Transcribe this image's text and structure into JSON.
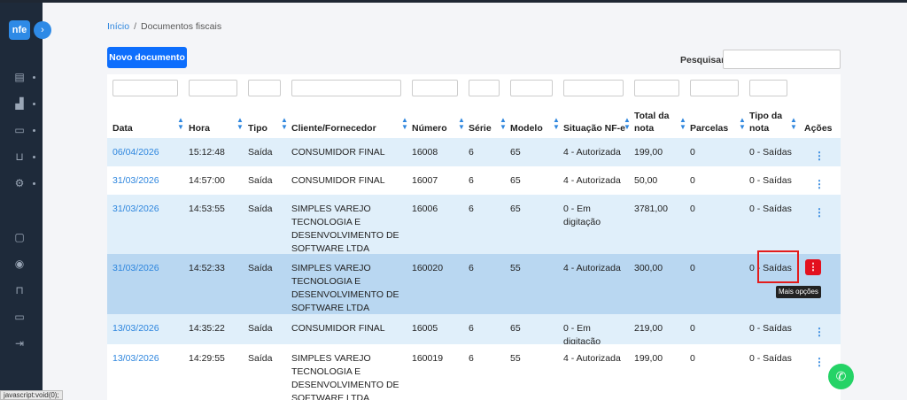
{
  "sidebar": {
    "logo": "nfe",
    "toggle": "›",
    "icons": [
      "list-icon",
      "bar-chart-icon",
      "folder-icon",
      "cart-icon",
      "gear-icon",
      "message-icon",
      "microphone-icon",
      "lock-icon",
      "laptop-icon",
      "logout-icon"
    ]
  },
  "status_bar": "javascript:void(0);",
  "breadcrumb": {
    "home": "Início",
    "separator": "/",
    "current": "Documentos fiscais"
  },
  "toolbar": {
    "new_document": "Novo documento",
    "search_label": "Pesquisar",
    "search_value": ""
  },
  "table": {
    "columns": {
      "data": "Data",
      "hora": "Hora",
      "tipo": "Tipo",
      "cliente": "Cliente/Fornecedor",
      "numero": "Número",
      "serie": "Série",
      "modelo": "Modelo",
      "situacao": "Situação NF-e",
      "total_1": "Total da",
      "total_2": "nota",
      "parcelas": "Parcelas",
      "tipo_nota_1": "Tipo da",
      "tipo_nota_2": "nota",
      "acoes": "Ações"
    },
    "rows": [
      {
        "data": "06/04/2026",
        "hora": "15:12:48",
        "tipo": "Saída",
        "cliente": "CONSUMIDOR FINAL",
        "numero": "16008",
        "serie": "6",
        "modelo": "65",
        "situacao": "4 - Autorizada",
        "total": "199,00",
        "parcelas": "0",
        "tipo_nota": "0 - Saídas"
      },
      {
        "data": "31/03/2026",
        "hora": "14:57:00",
        "tipo": "Saída",
        "cliente": "CONSUMIDOR FINAL",
        "numero": "16007",
        "serie": "6",
        "modelo": "65",
        "situacao": "4 - Autorizada",
        "total": "50,00",
        "parcelas": "0",
        "tipo_nota": "0 - Saídas"
      },
      {
        "data": "31/03/2026",
        "hora": "14:53:55",
        "tipo": "Saída",
        "cliente": "SIMPLES VAREJO TECNOLOGIA E DESENVOLVIMENTO DE SOFTWARE LTDA",
        "numero": "16006",
        "serie": "6",
        "modelo": "65",
        "situacao": "0 - Em digitação",
        "total": "3781,00",
        "parcelas": "0",
        "tipo_nota": "0 - Saídas"
      },
      {
        "data": "31/03/2026",
        "hora": "14:52:33",
        "tipo": "Saída",
        "cliente": "SIMPLES VAREJO TECNOLOGIA E DESENVOLVIMENTO DE SOFTWARE LTDA",
        "numero": "160020",
        "serie": "6",
        "modelo": "55",
        "situacao": "4 - Autorizada",
        "total": "300,00",
        "parcelas": "0",
        "tipo_nota": "0 - Saídas"
      },
      {
        "data": "13/03/2026",
        "hora": "14:35:22",
        "tipo": "Saída",
        "cliente": "CONSUMIDOR FINAL",
        "numero": "16005",
        "serie": "6",
        "modelo": "65",
        "situacao": "0 - Em digitação",
        "total": "219,00",
        "parcelas": "0",
        "tipo_nota": "0 - Saídas"
      },
      {
        "data": "13/03/2026",
        "hora": "14:29:55",
        "tipo": "Saída",
        "cliente": "SIMPLES VAREJO TECNOLOGIA E DESENVOLVIMENTO DE SOFTWARE LTDA",
        "numero": "160019",
        "serie": "6",
        "modelo": "55",
        "situacao": "4 - Autorizada",
        "total": "199,00",
        "parcelas": "0",
        "tipo_nota": "0 - Saídas"
      }
    ],
    "actions_glyph": "⋮"
  },
  "tooltip": "Mais opções",
  "whatsapp_icon": "whatsapp-icon",
  "colors": {
    "primary": "#0d6efd",
    "link": "#2e86de",
    "row_light": "#e0effa",
    "row_selected": "#b9d7f1",
    "danger": "#e3101e",
    "whatsapp": "#25d366",
    "sidebar": "#1e2a3a"
  }
}
